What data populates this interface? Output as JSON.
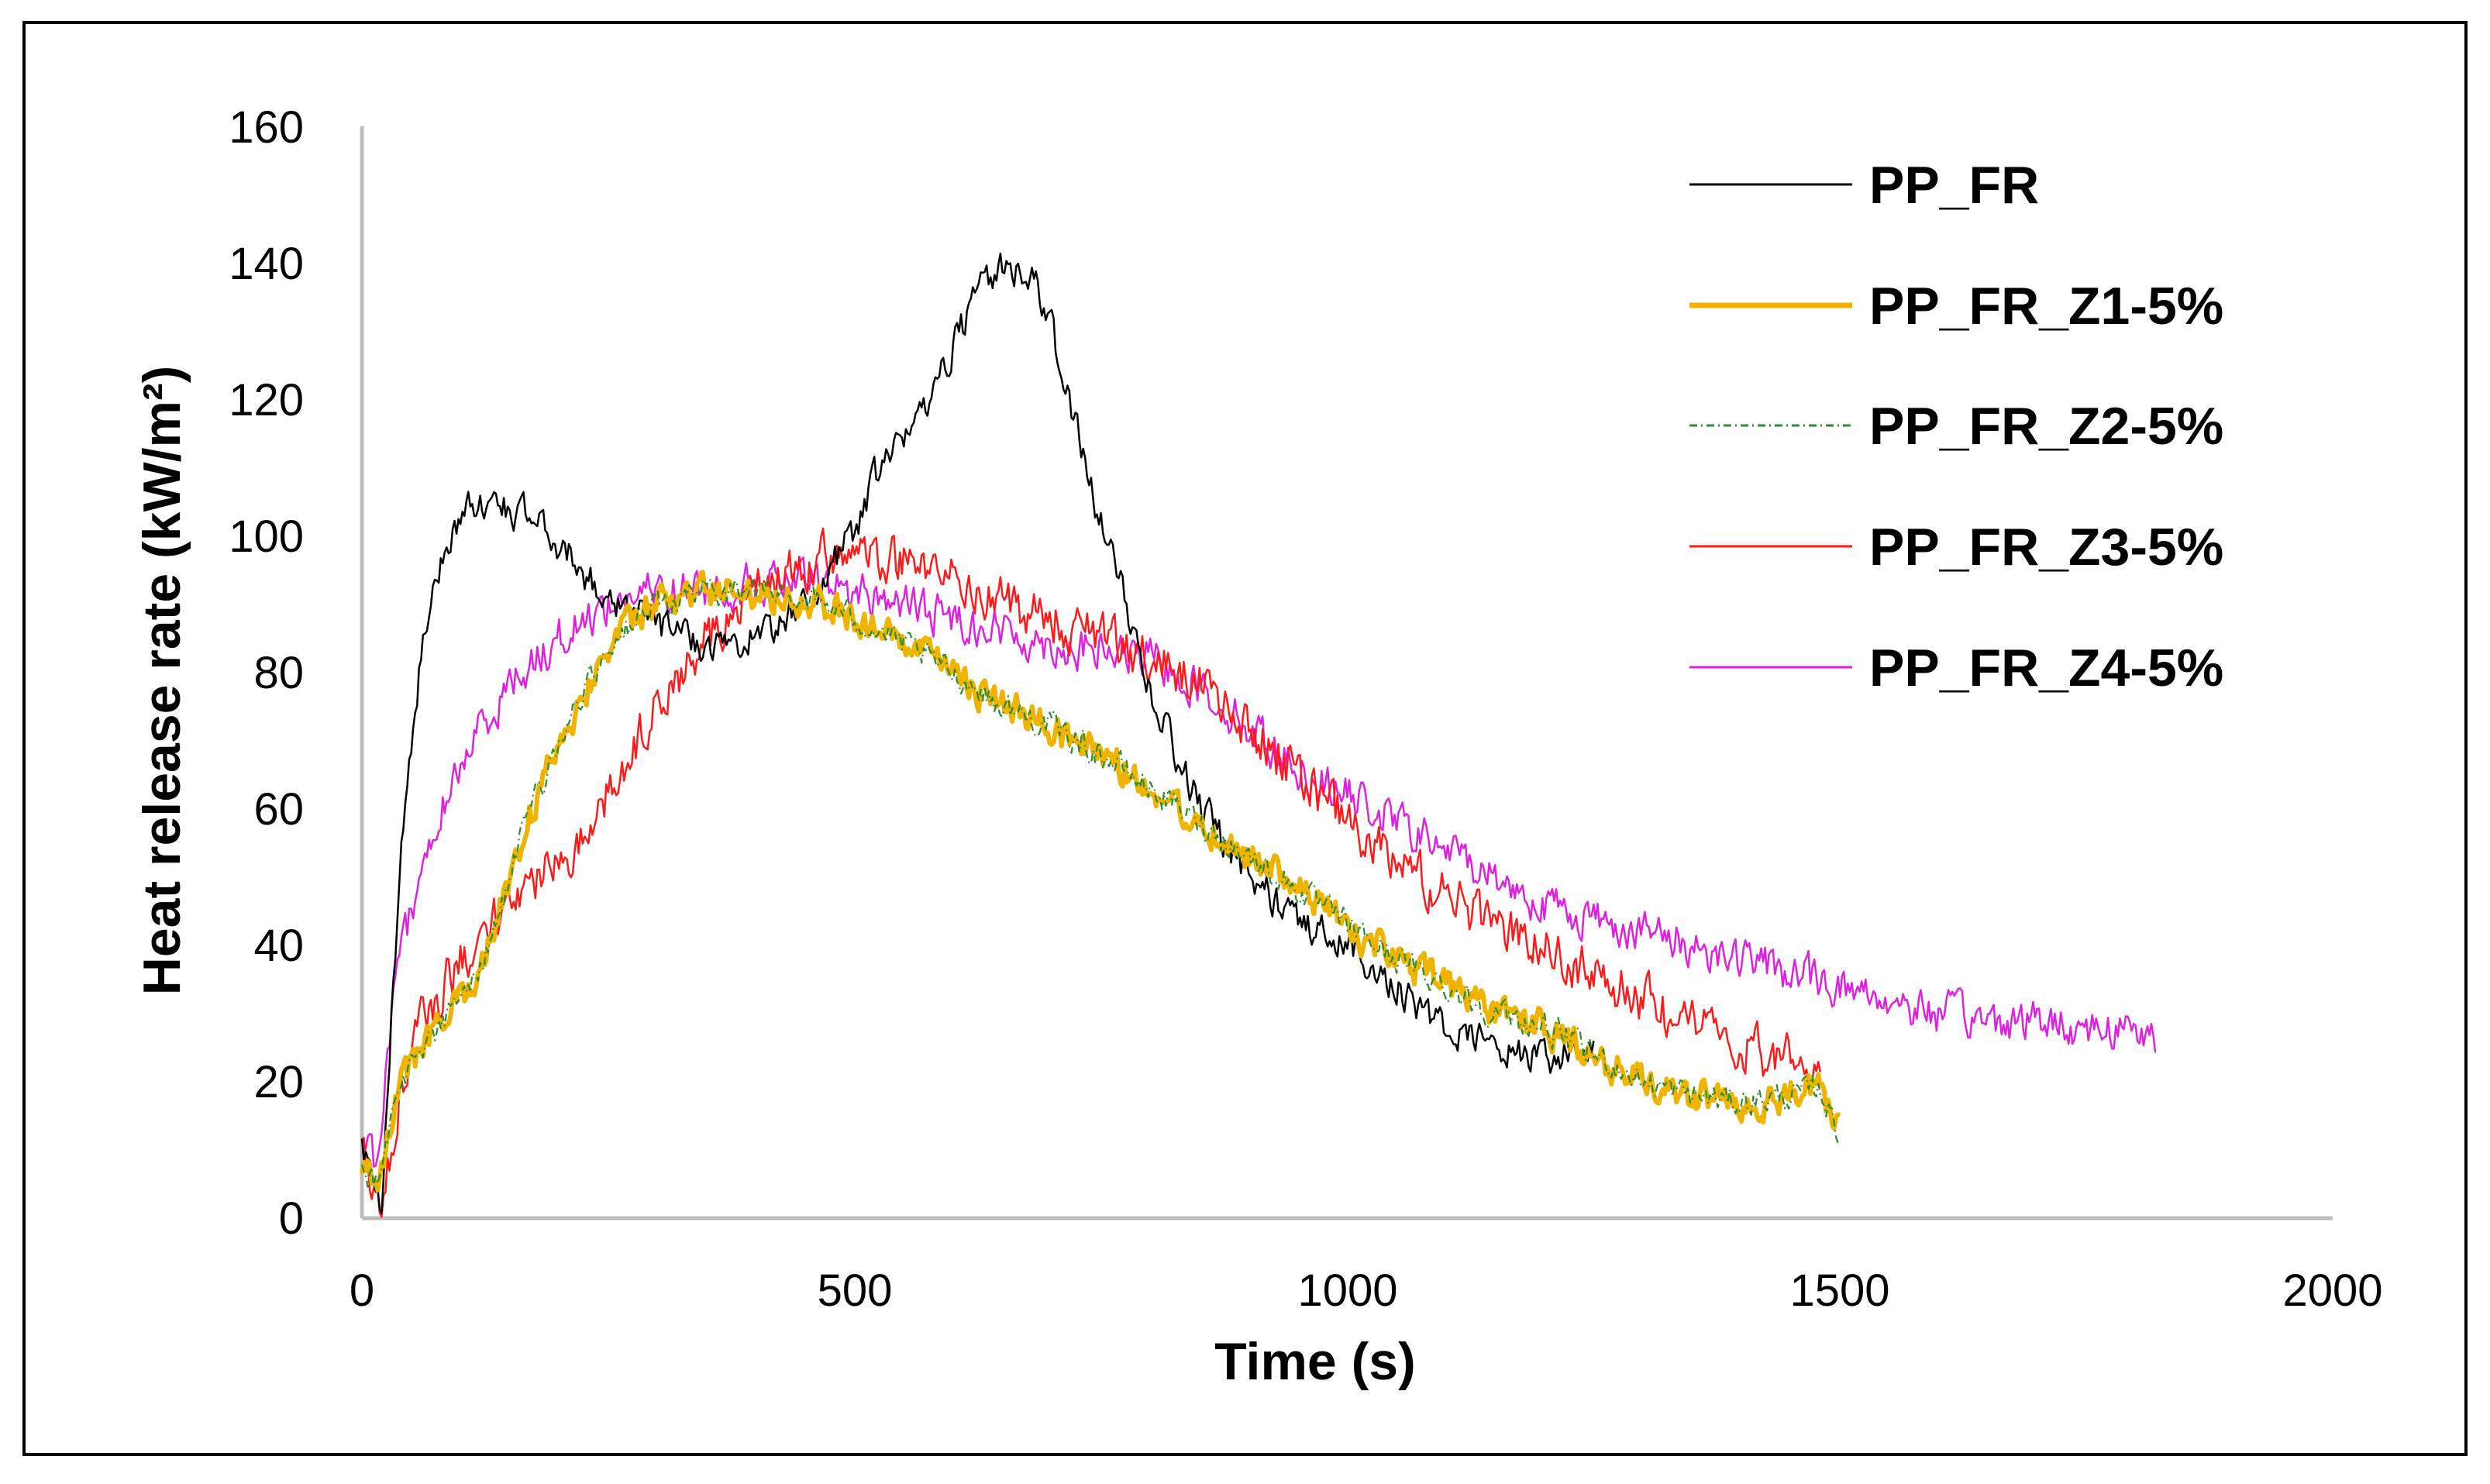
{
  "chart_data": {
    "type": "line",
    "title": "",
    "xlabel": "Time (s)",
    "ylabel": "Heat release rate (kW/m²)",
    "xlim": [
      0,
      2000
    ],
    "ylim": [
      0,
      160
    ],
    "xticks": [
      0,
      500,
      1000,
      1500,
      2000
    ],
    "yticks": [
      0,
      20,
      40,
      60,
      80,
      100,
      120,
      140,
      160
    ],
    "x_tick_labels": [
      "0",
      "500",
      "1000",
      "1500",
      "2000"
    ],
    "y_tick_labels": [
      "0",
      "20",
      "40",
      "60",
      "80",
      "100",
      "120",
      "140",
      "160"
    ],
    "grid": false,
    "legend_position": "top-right",
    "series": [
      {
        "name": "PP_FR",
        "color": "#000000",
        "stroke": "solid",
        "noise": 2.5,
        "x": [
          0,
          10,
          20,
          30,
          40,
          50,
          60,
          70,
          80,
          90,
          100,
          120,
          150,
          180,
          210,
          240,
          270,
          300,
          330,
          360,
          390,
          420,
          450,
          480,
          500,
          520,
          550,
          580,
          600,
          620,
          650,
          680,
          700,
          720,
          750,
          780,
          800,
          830,
          870,
          900,
          950,
          1000,
          1050,
          1100,
          1150,
          1200,
          1230,
          1250
        ],
        "y": [
          10,
          5,
          0,
          30,
          55,
          70,
          82,
          90,
          96,
          100,
          103,
          105,
          104,
          102,
          97,
          92,
          90,
          87,
          85,
          84,
          85,
          87,
          90,
          96,
          101,
          108,
          114,
          122,
          128,
          134,
          140,
          138,
          130,
          118,
          102,
          88,
          78,
          66,
          56,
          50,
          44,
          40,
          34,
          28,
          25,
          23,
          24,
          25
        ]
      },
      {
        "name": "PP_FR_Z1-5%",
        "color": "#f0b400",
        "stroke": "thick",
        "noise": 2.5,
        "x": [
          0,
          15,
          25,
          40,
          60,
          80,
          100,
          130,
          160,
          200,
          250,
          300,
          350,
          400,
          450,
          500,
          550,
          600,
          650,
          700,
          750,
          800,
          850,
          900,
          950,
          1000,
          1050,
          1100,
          1150,
          1200,
          1250,
          1300,
          1350,
          1400,
          1450,
          1480,
          1500
        ],
        "y": [
          8,
          5,
          12,
          20,
          25,
          28,
          32,
          40,
          55,
          70,
          84,
          90,
          92,
          92,
          91,
          88,
          84,
          80,
          75,
          72,
          68,
          63,
          58,
          53,
          48,
          43,
          38,
          34,
          30,
          28,
          24,
          20,
          18,
          17,
          18,
          19,
          12
        ]
      },
      {
        "name": "PP_FR_Z2-5%",
        "color": "#2e8b2e",
        "stroke": "dash-dot",
        "noise": 2.0,
        "x": [
          0,
          15,
          25,
          40,
          60,
          80,
          100,
          130,
          160,
          200,
          250,
          300,
          350,
          400,
          450,
          500,
          550,
          600,
          650,
          700,
          750,
          800,
          850,
          900,
          950,
          1000,
          1050,
          1100,
          1150,
          1200,
          1250,
          1300,
          1350,
          1400,
          1450,
          1480,
          1500
        ],
        "y": [
          8,
          5,
          12,
          20,
          25,
          28,
          32,
          40,
          55,
          70,
          84,
          90,
          92,
          92,
          91,
          88,
          84,
          80,
          75,
          72,
          68,
          63,
          58,
          53,
          48,
          43,
          38,
          34,
          30,
          28,
          24,
          20,
          18,
          17,
          18,
          19,
          12
        ]
      },
      {
        "name": "PP_FR_Z3-5%",
        "color": "#ff1a1a",
        "stroke": "solid",
        "noise": 3.5,
        "x": [
          0,
          20,
          40,
          60,
          80,
          100,
          150,
          200,
          250,
          300,
          350,
          400,
          450,
          500,
          550,
          600,
          650,
          700,
          750,
          800,
          850,
          900,
          950,
          1000,
          1050,
          1100,
          1150,
          1200,
          1250,
          1300,
          1350,
          1400,
          1450,
          1480
        ],
        "y": [
          10,
          0,
          20,
          28,
          33,
          38,
          46,
          52,
          62,
          75,
          85,
          92,
          96,
          98,
          96,
          94,
          90,
          88,
          85,
          82,
          78,
          72,
          65,
          58,
          52,
          47,
          43,
          40,
          36,
          32,
          28,
          25,
          23,
          20
        ]
      },
      {
        "name": "PP_FR_Z4-5%",
        "color": "#e020e0",
        "stroke": "solid",
        "noise": 3.0,
        "x": [
          0,
          15,
          30,
          50,
          80,
          120,
          160,
          200,
          250,
          300,
          350,
          400,
          450,
          500,
          550,
          600,
          650,
          700,
          750,
          800,
          850,
          900,
          950,
          1000,
          1050,
          1100,
          1150,
          1200,
          1250,
          1300,
          1350,
          1400,
          1450,
          1500,
          1550,
          1600,
          1650,
          1700,
          1750,
          1800,
          1820
        ],
        "y": [
          12,
          8,
          30,
          45,
          60,
          72,
          80,
          85,
          90,
          92,
          92,
          93,
          93,
          92,
          90,
          88,
          86,
          84,
          83,
          82,
          78,
          72,
          66,
          62,
          58,
          54,
          50,
          46,
          44,
          42,
          40,
          38,
          36,
          34,
          32,
          30,
          29,
          29,
          28,
          28,
          26
        ]
      }
    ]
  }
}
